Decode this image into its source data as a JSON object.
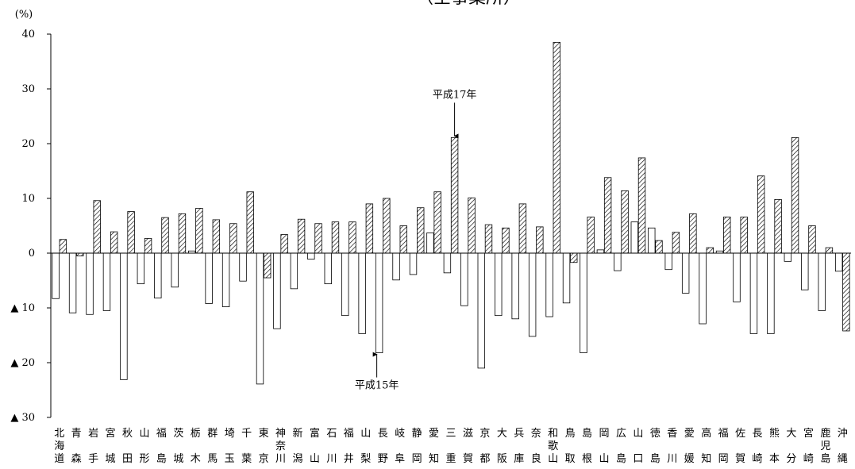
{
  "chart_data": {
    "type": "bar",
    "title": "（全事業所）",
    "ylabel": "(%)",
    "ylim": [
      -30,
      40
    ],
    "yticks": [
      40,
      30,
      20,
      10,
      0,
      -10,
      -20,
      -30
    ],
    "ytick_labels": [
      "40",
      "30",
      "20",
      "10",
      "0",
      "▲ 10",
      "▲ 20",
      "▲ 30"
    ],
    "grid": false,
    "categories": [
      [
        "北",
        "海",
        "道"
      ],
      [
        "青",
        "",
        "森"
      ],
      [
        "岩",
        "",
        "手"
      ],
      [
        "宮",
        "",
        "城"
      ],
      [
        "秋",
        "",
        "田"
      ],
      [
        "山",
        "",
        "形"
      ],
      [
        "福",
        "",
        "島"
      ],
      [
        "茨",
        "",
        "城"
      ],
      [
        "栃",
        "",
        "木"
      ],
      [
        "群",
        "",
        "馬"
      ],
      [
        "埼",
        "",
        "玉"
      ],
      [
        "千",
        "",
        "葉"
      ],
      [
        "東",
        "",
        "京"
      ],
      [
        "神",
        "奈",
        "川"
      ],
      [
        "新",
        "",
        "潟"
      ],
      [
        "富",
        "",
        "山"
      ],
      [
        "石",
        "",
        "川"
      ],
      [
        "福",
        "",
        "井"
      ],
      [
        "山",
        "",
        "梨"
      ],
      [
        "長",
        "",
        "野"
      ],
      [
        "岐",
        "",
        "阜"
      ],
      [
        "静",
        "",
        "岡"
      ],
      [
        "愛",
        "",
        "知"
      ],
      [
        "三",
        "",
        "重"
      ],
      [
        "滋",
        "",
        "賀"
      ],
      [
        "京",
        "",
        "都"
      ],
      [
        "大",
        "",
        "阪"
      ],
      [
        "兵",
        "",
        "庫"
      ],
      [
        "奈",
        "",
        "良"
      ],
      [
        "和",
        "歌",
        "山"
      ],
      [
        "鳥",
        "",
        "取"
      ],
      [
        "島",
        "",
        "根"
      ],
      [
        "岡",
        "",
        "山"
      ],
      [
        "広",
        "",
        "島"
      ],
      [
        "山",
        "",
        "口"
      ],
      [
        "徳",
        "",
        "島"
      ],
      [
        "香",
        "",
        "川"
      ],
      [
        "愛",
        "",
        "媛"
      ],
      [
        "高",
        "",
        "知"
      ],
      [
        "福",
        "",
        "岡"
      ],
      [
        "佐",
        "",
        "賀"
      ],
      [
        "長",
        "",
        "崎"
      ],
      [
        "熊",
        "",
        "本"
      ],
      [
        "大",
        "",
        "分"
      ],
      [
        "宮",
        "",
        "崎"
      ],
      [
        "鹿",
        "児",
        "島"
      ],
      [
        "沖",
        "",
        "縄"
      ]
    ],
    "series": [
      {
        "name": "平成15年",
        "fill": "#ffffff",
        "values": [
          -8.3,
          -10.9,
          -11.2,
          -10.5,
          -23.1,
          -5.6,
          -8.2,
          -6.2,
          0.4,
          -9.2,
          -9.8,
          -5.1,
          -23.9,
          -13.8,
          -6.5,
          -1.1,
          -5.6,
          -11.4,
          -14.7,
          -18.2,
          -4.9,
          -3.9,
          3.7,
          -3.6,
          -9.6,
          -21.0,
          -11.4,
          -12.0,
          -15.2,
          -11.6,
          -9.1,
          -18.2,
          0.6,
          -3.2,
          5.7,
          4.6,
          -3.0,
          -7.3,
          -12.9,
          0.4,
          -8.9,
          -14.7,
          -14.7,
          -1.5,
          -6.7,
          -10.5,
          -3.3
        ]
      },
      {
        "name": "平成17年",
        "fill": "hatched",
        "values": [
          2.5,
          -0.5,
          9.6,
          3.9,
          7.6,
          2.7,
          6.5,
          7.2,
          8.2,
          6.1,
          5.4,
          11.2,
          -4.5,
          3.4,
          6.2,
          5.4,
          5.7,
          5.7,
          9.0,
          10.0,
          5.0,
          8.3,
          11.2,
          21.1,
          10.1,
          5.2,
          4.6,
          9.0,
          4.8,
          38.5,
          -1.7,
          6.6,
          13.8,
          11.4,
          17.4,
          2.3,
          3.8,
          7.2,
          1.0,
          6.6,
          6.6,
          14.1,
          9.8,
          21.1,
          5.0,
          1.0,
          -14.2
        ]
      }
    ],
    "annotations": [
      {
        "text": "平成17年",
        "category_index": 23,
        "series": 1
      },
      {
        "text": "平成15年",
        "category_index": 19,
        "series": 0
      }
    ]
  }
}
